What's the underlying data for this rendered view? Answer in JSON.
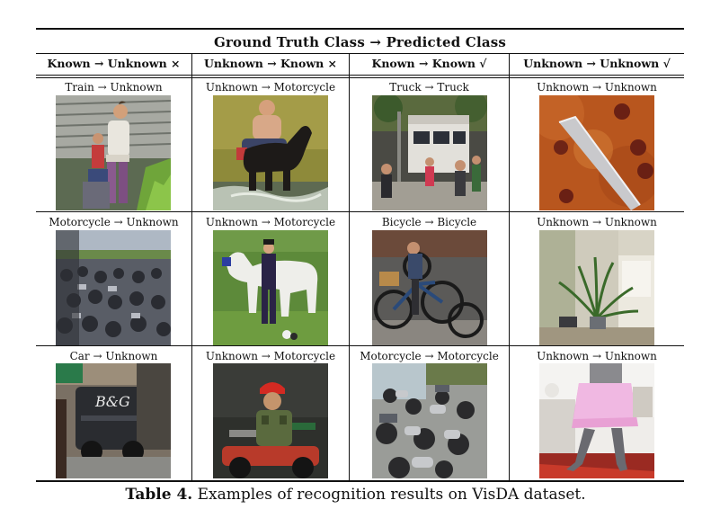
{
  "table": {
    "title": "Ground Truth Class → Predicted Class",
    "headers": [
      "Known → Unknown ×",
      "Unknown → Known ×",
      "Known → Known √",
      "Unknown → Unknown √"
    ],
    "rows": [
      [
        "Train → Unknown",
        "Unknown → Motorcycle",
        "Truck → Truck",
        "Unknown → Unknown"
      ],
      [
        "Motorcycle → Unknown",
        "Unknown → Motorcycle",
        "Bicycle → Bicycle",
        "Unknown → Unknown"
      ],
      [
        "Car → Unknown",
        "Unknown → Motorcycle",
        "Motorcycle → Motorcycle",
        "Unknown → Unknown"
      ]
    ],
    "images": [
      [
        "photo-train-woman",
        "photo-man-horse-water",
        "photo-truck-street",
        "photo-pizza-knife"
      ],
      [
        "photo-motorcycle-crowd",
        "photo-man-white-horse",
        "photo-bicycles",
        "photo-plant-room"
      ],
      [
        "photo-car-bg-sign",
        "photo-soldier-motorcycle",
        "photo-parked-motorcycles",
        "photo-dancer-pink-skirt"
      ]
    ]
  },
  "caption": {
    "label": "Table 4.",
    "text": " Examples of recognition results on VisDA dataset."
  }
}
